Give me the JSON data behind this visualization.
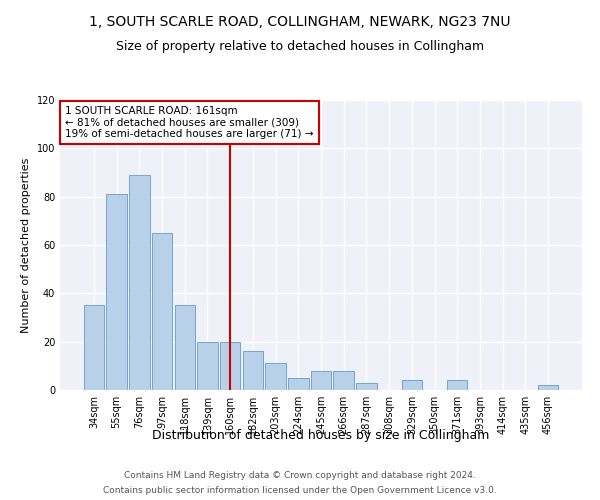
{
  "title": "1, SOUTH SCARLE ROAD, COLLINGHAM, NEWARK, NG23 7NU",
  "subtitle": "Size of property relative to detached houses in Collingham",
  "xlabel": "Distribution of detached houses by size in Collingham",
  "ylabel": "Number of detached properties",
  "categories": [
    "34sqm",
    "55sqm",
    "76sqm",
    "97sqm",
    "118sqm",
    "139sqm",
    "160sqm",
    "182sqm",
    "203sqm",
    "224sqm",
    "245sqm",
    "266sqm",
    "287sqm",
    "308sqm",
    "329sqm",
    "350sqm",
    "371sqm",
    "393sqm",
    "414sqm",
    "435sqm",
    "456sqm"
  ],
  "values": [
    35,
    81,
    89,
    65,
    35,
    20,
    20,
    16,
    11,
    5,
    8,
    8,
    3,
    0,
    4,
    0,
    4,
    0,
    0,
    0,
    2
  ],
  "bar_color": "#b8d0e8",
  "bar_edge_color": "#6699cc",
  "vline_color": "#cc0000",
  "vline_x": 6,
  "annotation_title": "1 SOUTH SCARLE ROAD: 161sqm",
  "annotation_line1": "← 81% of detached houses are smaller (309)",
  "annotation_line2": "19% of semi-detached houses are larger (71) →",
  "annotation_box_color": "#cc0000",
  "ylim": [
    0,
    120
  ],
  "yticks": [
    0,
    20,
    40,
    60,
    80,
    100,
    120
  ],
  "background_color": "#eef2f8",
  "footer_line1": "Contains HM Land Registry data © Crown copyright and database right 2024.",
  "footer_line2": "Contains public sector information licensed under the Open Government Licence v3.0.",
  "title_fontsize": 10,
  "subtitle_fontsize": 9,
  "xlabel_fontsize": 9,
  "ylabel_fontsize": 8,
  "tick_fontsize": 7,
  "annotation_fontsize": 7.5,
  "footer_fontsize": 6.5
}
